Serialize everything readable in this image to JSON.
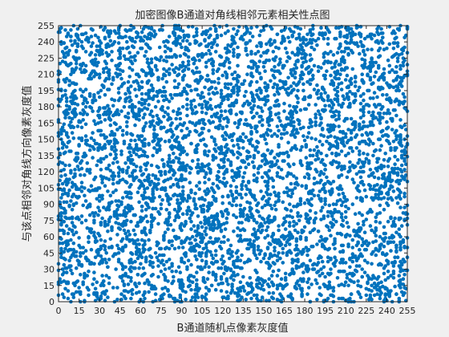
{
  "chart_data": {
    "type": "scatter",
    "title": "加密图像B通道对角线相邻元素相关性点图",
    "xlabel": "B通道随机点像素灰度值",
    "ylabel": "与该点相邻对角线方向像素灰度值",
    "xlim": [
      0,
      255
    ],
    "ylim": [
      0,
      255
    ],
    "xticks": [
      0,
      15,
      30,
      45,
      60,
      75,
      90,
      105,
      120,
      135,
      150,
      165,
      180,
      195,
      210,
      225,
      240,
      255
    ],
    "yticks": [
      0,
      15,
      30,
      45,
      60,
      75,
      90,
      105,
      120,
      135,
      150,
      165,
      180,
      195,
      210,
      225,
      240,
      255
    ],
    "grid": false,
    "legend": "none",
    "series": [
      {
        "color": "#0072bd",
        "marker": "filled-circle",
        "point_count": 5000,
        "distribution": "uniform-random over [0,255] x [0,255]",
        "x": [
          12,
          47,
          88,
          133,
          176,
          219,
          251,
          5,
          64,
          102,
          158,
          199,
          240,
          29,
          71,
          117,
          145,
          188,
          230,
          9,
          55,
          96,
          141,
          183,
          226
        ],
        "y": [
          201,
          33,
          147,
          89,
          244,
          15,
          120,
          176,
          62,
          228,
          101,
          39,
          187,
          140,
          7,
          215,
          58,
          166,
          94,
          251,
          127,
          19,
          203,
          76,
          154
        ]
      }
    ]
  }
}
